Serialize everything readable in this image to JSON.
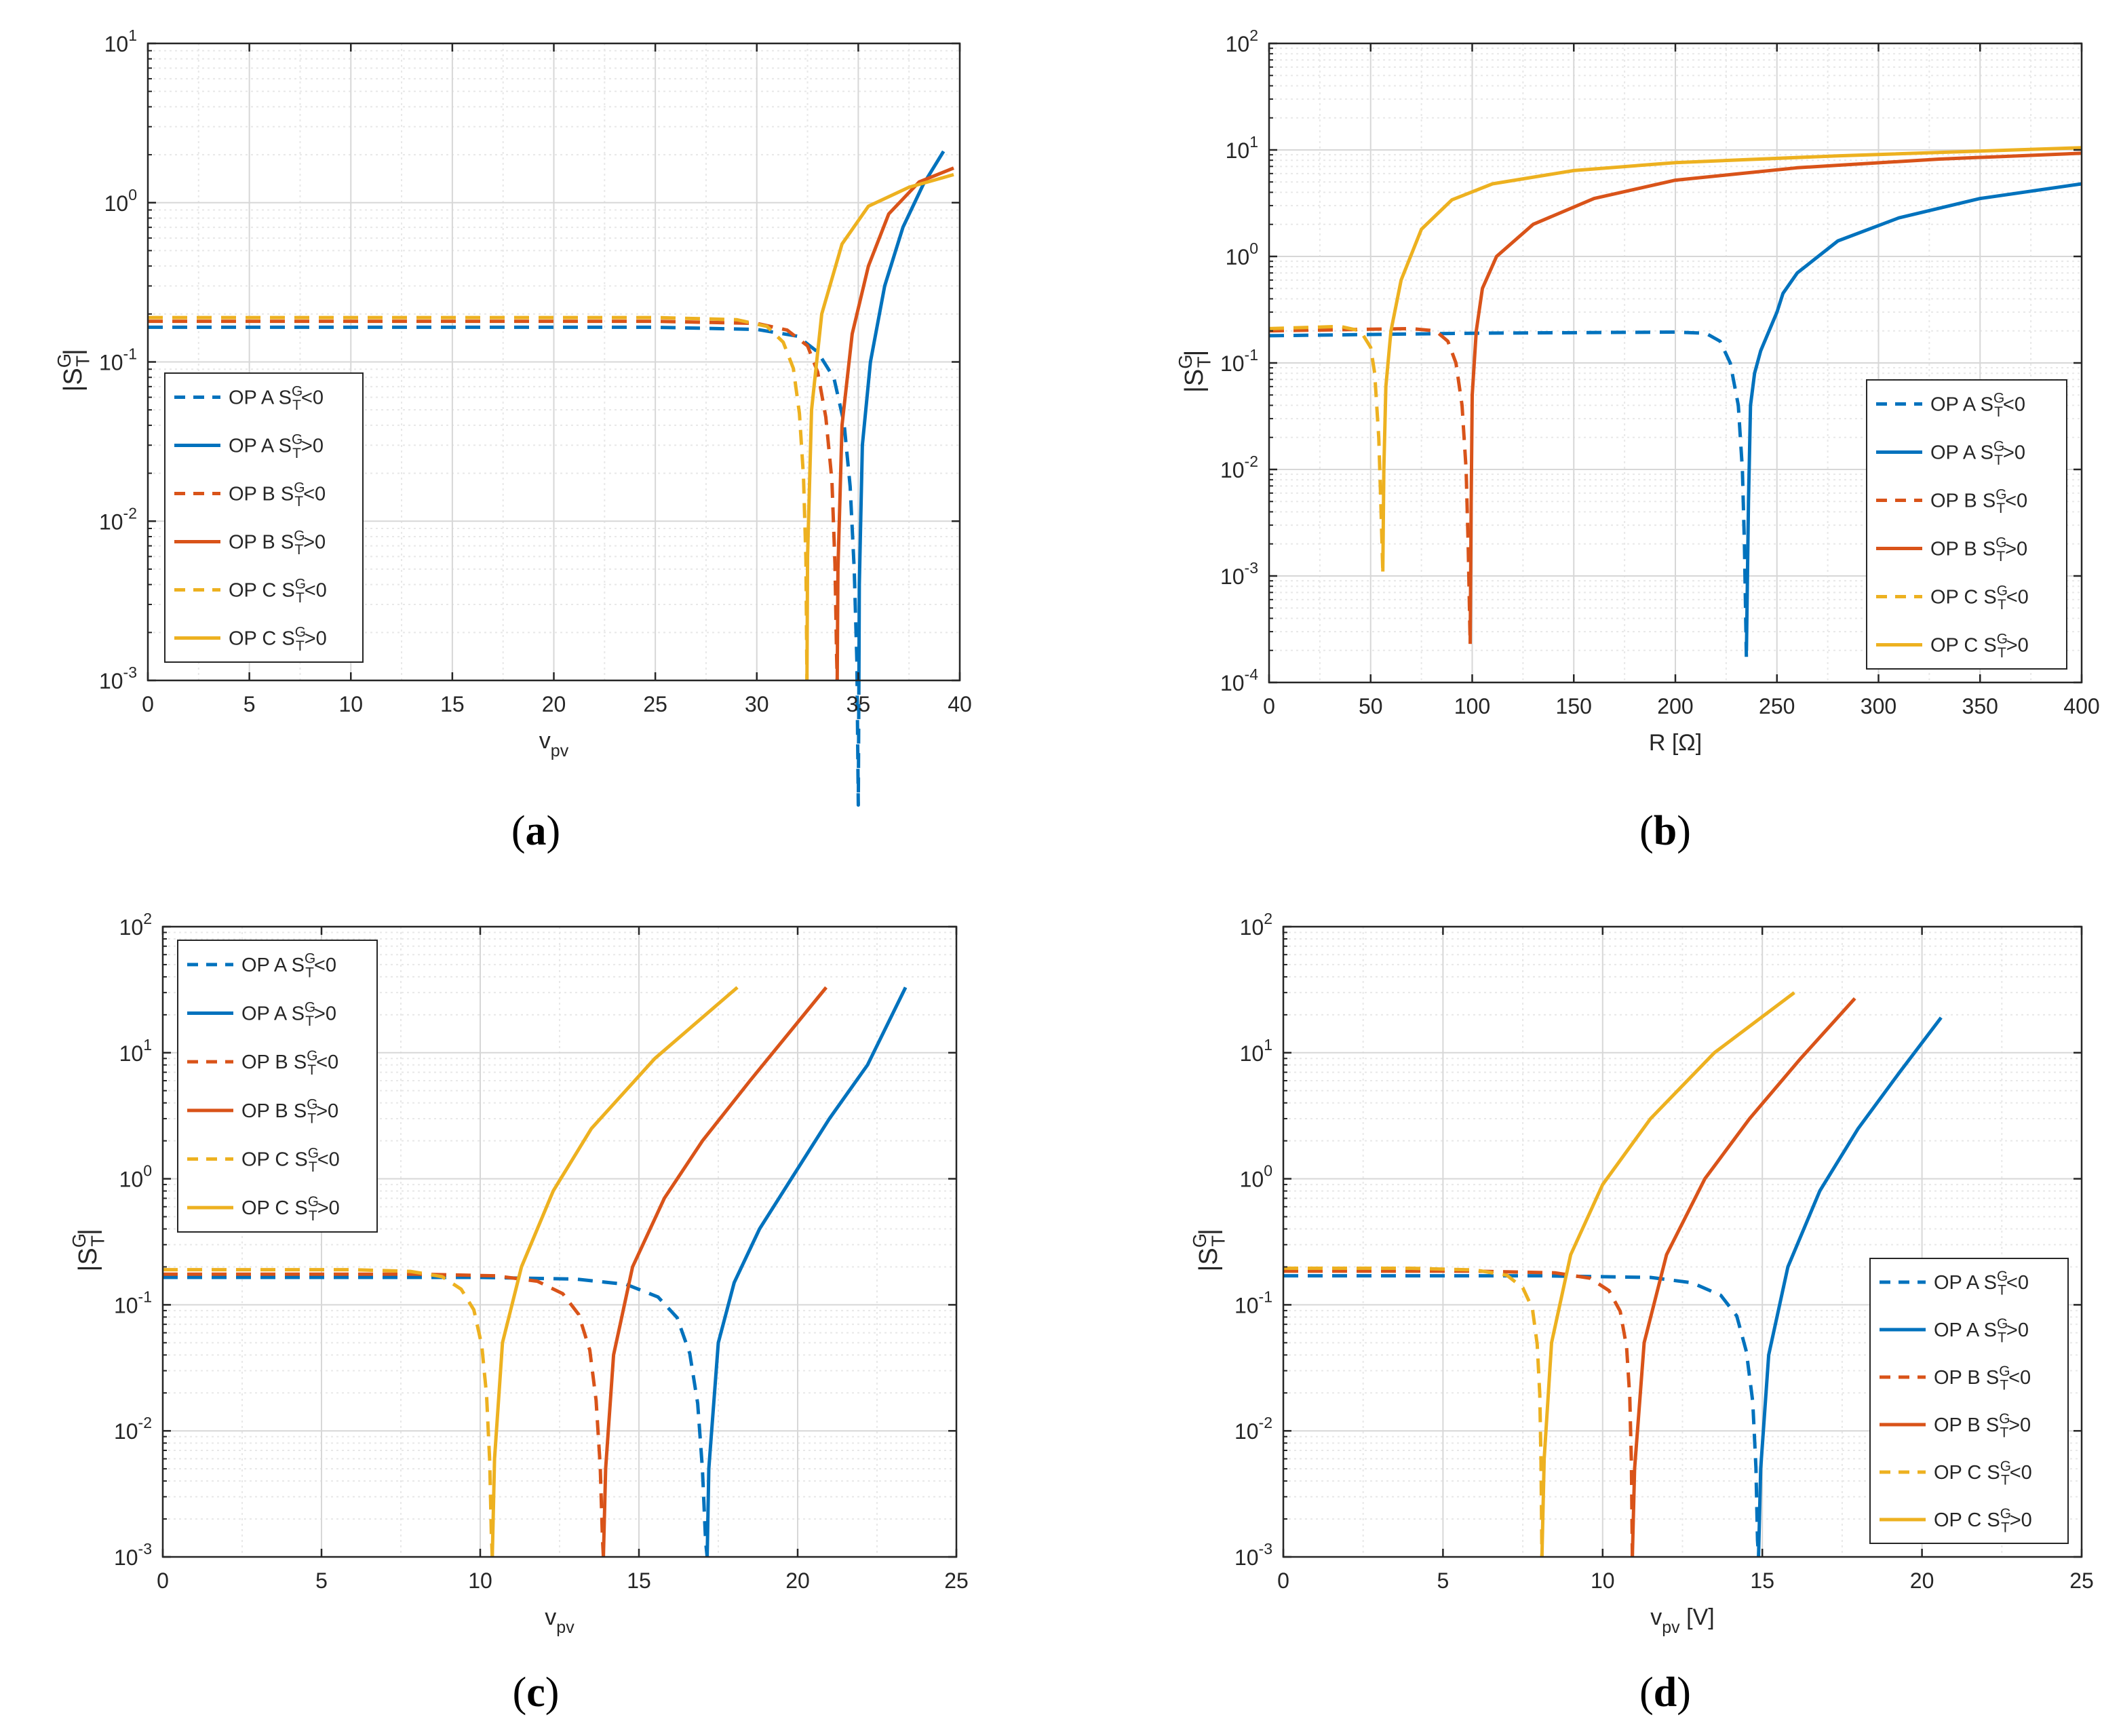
{
  "figure": {
    "panels": [
      "a",
      "b",
      "c",
      "d"
    ]
  },
  "colors": {
    "op_a": "#0072BD",
    "op_b": "#D95319",
    "op_c": "#EDB120",
    "grid_major": "#d7d7d7",
    "grid_minor": "#e8e8e8",
    "axis": "#262626"
  },
  "legend_entries": [
    {
      "op": "OP A",
      "sign": "<0",
      "style": "dashed",
      "color": "#0072BD"
    },
    {
      "op": "OP A",
      "sign": ">0",
      "style": "solid",
      "color": "#0072BD"
    },
    {
      "op": "OP B",
      "sign": "<0",
      "style": "dashed",
      "color": "#D95319"
    },
    {
      "op": "OP B",
      "sign": ">0",
      "style": "solid",
      "color": "#D95319"
    },
    {
      "op": "OP C",
      "sign": "<0",
      "style": "dashed",
      "color": "#EDB120"
    },
    {
      "op": "OP C",
      "sign": ">0",
      "style": "solid",
      "color": "#EDB120"
    }
  ],
  "chart_data": [
    {
      "panel": "a",
      "caption": "a",
      "type": "line",
      "yscale": "log",
      "xlabel_main": "v",
      "xlabel_sub": "pv",
      "xlabel_unit": "",
      "ylabel": "|S_T^G|",
      "xlim": [
        0,
        40
      ],
      "ylim_exp": [
        -3,
        1
      ],
      "xticks": [
        0,
        5,
        10,
        15,
        20,
        25,
        30,
        35,
        40
      ],
      "yticks_exp": [
        -3,
        -2,
        -1,
        0,
        1
      ],
      "legend_position": "bottom-left",
      "series": [
        {
          "name": "OP A S_T^G<0",
          "op": "A",
          "dash": true,
          "base": 0.165,
          "x": [
            0,
            25,
            30,
            32,
            33,
            33.8,
            34.3,
            34.6,
            34.8,
            34.93,
            35.0,
            35.03
          ]
        },
        {
          "name": "OP A S_T^G>0",
          "op": "A",
          "dash": false,
          "points": [
            [
              35.03,
              0.001
            ],
            [
              35.05,
              0.004
            ],
            [
              35.2,
              0.03
            ],
            [
              35.6,
              0.1
            ],
            [
              36.3,
              0.3
            ],
            [
              37.2,
              0.7
            ],
            [
              38.2,
              1.3
            ],
            [
              39.2,
              2.1
            ]
          ]
        },
        {
          "name": "OP B S_T^G<0",
          "op": "B",
          "dash": true,
          "base": 0.18,
          "x": [
            0,
            25,
            30,
            31.5,
            32.5,
            33.0,
            33.4,
            33.7,
            33.85,
            33.93,
            33.96
          ]
        },
        {
          "name": "OP B S_T^G>0",
          "op": "B",
          "dash": false,
          "points": [
            [
              33.96,
              0.001
            ],
            [
              34.0,
              0.005
            ],
            [
              34.2,
              0.04
            ],
            [
              34.7,
              0.15
            ],
            [
              35.5,
              0.4
            ],
            [
              36.5,
              0.85
            ],
            [
              38.0,
              1.35
            ],
            [
              39.7,
              1.65
            ]
          ]
        },
        {
          "name": "OP C S_T^G<0",
          "op": "C",
          "dash": true,
          "base": 0.19,
          "x": [
            0,
            25,
            29,
            30.5,
            31.3,
            31.8,
            32.1,
            32.3,
            32.42,
            32.47
          ]
        },
        {
          "name": "OP C S_T^G>0",
          "op": "C",
          "dash": false,
          "points": [
            [
              32.47,
              0.001
            ],
            [
              32.5,
              0.006
            ],
            [
              32.7,
              0.05
            ],
            [
              33.2,
              0.2
            ],
            [
              34.2,
              0.55
            ],
            [
              35.5,
              0.95
            ],
            [
              37.5,
              1.25
            ],
            [
              39.7,
              1.5
            ]
          ]
        }
      ]
    },
    {
      "panel": "b",
      "caption": "b",
      "type": "line",
      "yscale": "log",
      "xlabel_main": "R [Ω]",
      "xlabel_sub": "",
      "xlabel_unit": "",
      "ylabel": "|S_T^G|",
      "xlim": [
        0,
        400
      ],
      "ylim_exp": [
        -4,
        2
      ],
      "xticks": [
        0,
        50,
        100,
        150,
        200,
        250,
        300,
        350,
        400
      ],
      "yticks_exp": [
        -4,
        -3,
        -2,
        -1,
        0,
        1,
        2
      ],
      "legend_position": "right",
      "series": [
        {
          "name": "OP A S_T^G<0",
          "op": "A",
          "dash": true,
          "points": [
            [
              0,
              0.18
            ],
            [
              100,
              0.19
            ],
            [
              200,
              0.195
            ],
            [
              215,
              0.19
            ],
            [
              222,
              0.16
            ],
            [
              227,
              0.1
            ],
            [
              231,
              0.04
            ],
            [
              233,
              0.01
            ],
            [
              234,
              0.002
            ],
            [
              235,
              0.00016
            ]
          ]
        },
        {
          "name": "OP A S_T^G>0",
          "op": "A",
          "dash": false,
          "points": [
            [
              235,
              0.0002
            ],
            [
              236,
              0.005
            ],
            [
              237,
              0.04
            ],
            [
              239,
              0.08
            ],
            [
              242,
              0.13
            ],
            [
              250,
              0.3
            ],
            [
              253,
              0.45
            ],
            [
              260,
              0.7
            ],
            [
              280,
              1.4
            ],
            [
              310,
              2.3
            ],
            [
              350,
              3.5
            ],
            [
              400,
              4.8
            ]
          ]
        },
        {
          "name": "OP B S_T^G<0",
          "op": "B",
          "dash": true,
          "points": [
            [
              0,
              0.2
            ],
            [
              70,
              0.21
            ],
            [
              82,
              0.2
            ],
            [
              88,
              0.16
            ],
            [
              92,
              0.1
            ],
            [
              95,
              0.04
            ],
            [
              97,
              0.01
            ],
            [
              98,
              0.002
            ],
            [
              99,
              0.00023
            ]
          ]
        },
        {
          "name": "OP B S_T^G>0",
          "op": "B",
          "dash": false,
          "points": [
            [
              99,
              0.00023
            ],
            [
              99.5,
              0.005
            ],
            [
              100,
              0.05
            ],
            [
              102,
              0.2
            ],
            [
              105,
              0.5
            ],
            [
              112,
              1.0
            ],
            [
              130,
              2.0
            ],
            [
              160,
              3.5
            ],
            [
              200,
              5.2
            ],
            [
              260,
              6.8
            ],
            [
              330,
              8.2
            ],
            [
              400,
              9.3
            ]
          ]
        },
        {
          "name": "OP C S_T^G<0",
          "op": "C",
          "dash": true,
          "points": [
            [
              0,
              0.21
            ],
            [
              35,
              0.22
            ],
            [
              45,
              0.2
            ],
            [
              50,
              0.14
            ],
            [
              52,
              0.08
            ],
            [
              54,
              0.02
            ],
            [
              55,
              0.005
            ],
            [
              56,
              0.0011
            ]
          ]
        },
        {
          "name": "OP C S_T^G>0",
          "op": "C",
          "dash": false,
          "points": [
            [
              56,
              0.0011
            ],
            [
              56.5,
              0.01
            ],
            [
              57.5,
              0.06
            ],
            [
              60,
              0.2
            ],
            [
              65,
              0.6
            ],
            [
              75,
              1.8
            ],
            [
              90,
              3.4
            ],
            [
              110,
              4.8
            ],
            [
              150,
              6.4
            ],
            [
              200,
              7.6
            ],
            [
              280,
              8.8
            ],
            [
              400,
              10.5
            ]
          ]
        }
      ]
    },
    {
      "panel": "c",
      "caption": "c",
      "type": "line",
      "yscale": "log",
      "xlabel_main": "v",
      "xlabel_sub": "pv",
      "xlabel_unit": "",
      "ylabel": "|S_T^G|",
      "xlim": [
        0,
        25
      ],
      "ylim_exp": [
        -3,
        2
      ],
      "xticks": [
        0,
        5,
        10,
        15,
        20,
        25
      ],
      "yticks_exp": [
        -3,
        -2,
        -1,
        0,
        1,
        2
      ],
      "legend_position": "top-left",
      "series": [
        {
          "name": "OP A S_T^G<0",
          "op": "A",
          "dash": true,
          "base": 0.165,
          "x": [
            0,
            10,
            13,
            14.6,
            15.6,
            16.2,
            16.6,
            16.85,
            17.0,
            17.1,
            17.15
          ]
        },
        {
          "name": "OP A S_T^G>0",
          "op": "A",
          "dash": false,
          "points": [
            [
              17.15,
              0.001
            ],
            [
              17.2,
              0.005
            ],
            [
              17.5,
              0.05
            ],
            [
              18.0,
              0.15
            ],
            [
              18.8,
              0.4
            ],
            [
              19.8,
              1.0
            ],
            [
              21.0,
              3.0
            ],
            [
              22.2,
              8.0
            ],
            [
              23.4,
              33.0
            ]
          ]
        },
        {
          "name": "OP B S_T^G<0",
          "op": "B",
          "dash": true,
          "base": 0.175,
          "x": [
            0,
            8,
            10.5,
            11.8,
            12.6,
            13.1,
            13.45,
            13.65,
            13.78,
            13.85,
            13.88
          ]
        },
        {
          "name": "OP B S_T^G>0",
          "op": "B",
          "dash": false,
          "points": [
            [
              13.88,
              0.001
            ],
            [
              13.95,
              0.005
            ],
            [
              14.2,
              0.04
            ],
            [
              14.8,
              0.2
            ],
            [
              15.8,
              0.7
            ],
            [
              17.0,
              2.0
            ],
            [
              18.5,
              6.0
            ],
            [
              20.9,
              33.0
            ]
          ]
        },
        {
          "name": "OP C S_T^G<0",
          "op": "C",
          "dash": true,
          "base": 0.19,
          "x": [
            0,
            6,
            7.8,
            8.8,
            9.4,
            9.8,
            10.05,
            10.2,
            10.3,
            10.35,
            10.38
          ]
        },
        {
          "name": "OP C S_T^G>0",
          "op": "C",
          "dash": false,
          "points": [
            [
              10.38,
              0.001
            ],
            [
              10.45,
              0.006
            ],
            [
              10.7,
              0.05
            ],
            [
              11.3,
              0.2
            ],
            [
              12.3,
              0.8
            ],
            [
              13.5,
              2.5
            ],
            [
              15.5,
              9.0
            ],
            [
              18.1,
              33.0
            ]
          ]
        }
      ]
    },
    {
      "panel": "d",
      "caption": "d",
      "type": "line",
      "yscale": "log",
      "xlabel_main": "v",
      "xlabel_sub": "pv",
      "xlabel_unit": "[V]",
      "ylabel": "|S_T^G|",
      "xlim": [
        0,
        25
      ],
      "ylim_exp": [
        -3,
        2
      ],
      "xticks": [
        0,
        5,
        10,
        15,
        20,
        25
      ],
      "yticks_exp": [
        -3,
        -2,
        -1,
        0,
        1,
        2
      ],
      "legend_position": "bottom-right",
      "series": [
        {
          "name": "OP A S_T^G<0",
          "op": "A",
          "dash": true,
          "base": 0.17,
          "x": [
            0,
            8,
            11.5,
            12.8,
            13.7,
            14.2,
            14.5,
            14.7,
            14.8,
            14.85,
            14.88
          ]
        },
        {
          "name": "OP A S_T^G>0",
          "op": "A",
          "dash": false,
          "points": [
            [
              14.88,
              0.001
            ],
            [
              14.95,
              0.005
            ],
            [
              15.2,
              0.04
            ],
            [
              15.8,
              0.2
            ],
            [
              16.8,
              0.8
            ],
            [
              18.0,
              2.5
            ],
            [
              19.3,
              7.0
            ],
            [
              20.6,
              19.0
            ]
          ]
        },
        {
          "name": "OP B S_T^G<0",
          "op": "B",
          "dash": true,
          "base": 0.185,
          "x": [
            0,
            6,
            8.5,
            9.6,
            10.2,
            10.55,
            10.75,
            10.85,
            10.9,
            10.93
          ]
        },
        {
          "name": "OP B S_T^G>0",
          "op": "B",
          "dash": false,
          "points": [
            [
              10.93,
              0.001
            ],
            [
              11.0,
              0.005
            ],
            [
              11.3,
              0.05
            ],
            [
              12.0,
              0.25
            ],
            [
              13.2,
              1.0
            ],
            [
              14.6,
              3.0
            ],
            [
              16.2,
              9.0
            ],
            [
              17.9,
              27.0
            ]
          ]
        },
        {
          "name": "OP C S_T^G<0",
          "op": "C",
          "dash": true,
          "base": 0.195,
          "x": [
            0,
            4,
            6,
            7.0,
            7.5,
            7.8,
            7.95,
            8.03,
            8.07,
            8.1
          ]
        },
        {
          "name": "OP C S_T^G>0",
          "op": "C",
          "dash": false,
          "points": [
            [
              8.1,
              0.001
            ],
            [
              8.17,
              0.006
            ],
            [
              8.4,
              0.05
            ],
            [
              9.0,
              0.25
            ],
            [
              10.0,
              0.9
            ],
            [
              11.5,
              3.0
            ],
            [
              13.5,
              10.0
            ],
            [
              16.0,
              30.0
            ]
          ]
        }
      ]
    }
  ]
}
